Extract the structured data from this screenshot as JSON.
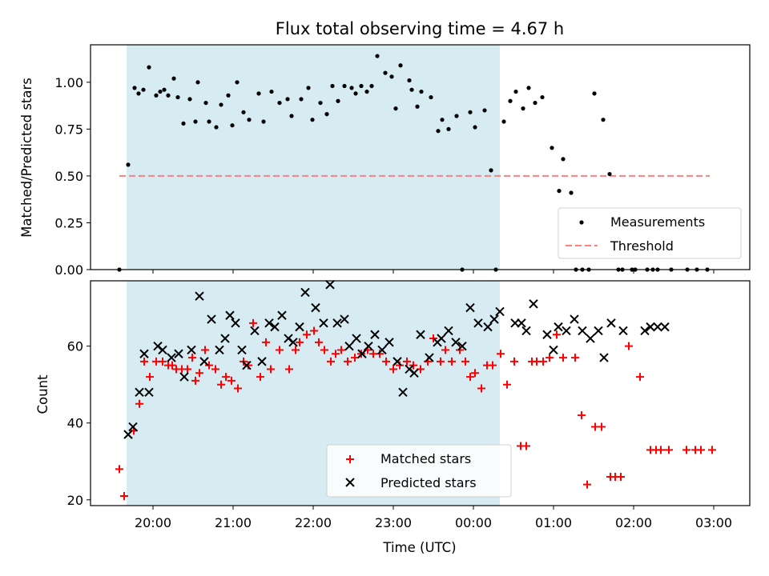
{
  "title": "Flux total observing time = 4.67 h",
  "xlabel": "Time (UTC)",
  "xticks": [
    "20:00",
    "21:00",
    "22:00",
    "23:00",
    "00:00",
    "01:00",
    "02:00",
    "03:00"
  ],
  "colors": {
    "shade": "#add8e6",
    "measurement": "#000000",
    "threshold": "#ff7f7f",
    "matched": "#ff0000",
    "predicted": "#000000"
  },
  "chart_data": [
    {
      "type": "scatter",
      "ylabel": "Matched/Predicted stars",
      "ylim": [
        0,
        1.2
      ],
      "yticks": [
        "0.00",
        "0.25",
        "0.50",
        "0.75",
        "1.00"
      ],
      "xlim_hours": [
        19.22,
        27.45
      ],
      "shaded_span_hours": [
        19.67,
        24.33
      ],
      "threshold": {
        "value": 0.5,
        "x_hours": [
          19.58,
          26.95
        ],
        "label": "Threshold"
      },
      "legend": [
        "Measurements",
        "Threshold"
      ],
      "legend_position": "lower right",
      "series": [
        {
          "name": "Measurements",
          "x_hours": [
            19.58,
            19.69,
            19.77,
            19.82,
            19.88,
            19.95,
            20.04,
            20.09,
            20.14,
            20.19,
            20.26,
            20.31,
            20.38,
            20.46,
            20.53,
            20.56,
            20.66,
            20.7,
            20.79,
            20.85,
            20.94,
            20.99,
            21.05,
            21.13,
            21.2,
            21.32,
            21.38,
            21.48,
            21.58,
            21.68,
            21.73,
            21.85,
            21.94,
            21.99,
            22.09,
            22.17,
            22.24,
            22.31,
            22.39,
            22.48,
            22.53,
            22.6,
            22.67,
            22.73,
            22.8,
            22.9,
            22.98,
            23.03,
            23.09,
            23.2,
            23.23,
            23.3,
            23.35,
            23.47,
            23.56,
            23.61,
            23.69,
            23.79,
            23.86,
            23.96,
            24.02,
            24.14,
            24.22,
            24.28,
            24.38,
            24.46,
            24.53,
            24.62,
            24.69,
            24.77,
            24.86,
            24.98,
            25.07,
            25.12,
            25.22,
            25.28,
            25.36,
            25.44,
            25.51,
            25.62,
            25.7,
            25.81,
            25.86,
            25.98,
            26.02,
            26.17,
            26.24,
            26.3,
            26.47,
            26.67,
            26.79,
            26.92
          ],
          "y": [
            0.0,
            0.56,
            0.97,
            0.94,
            0.96,
            1.08,
            0.93,
            0.95,
            0.96,
            0.93,
            1.02,
            0.92,
            0.78,
            0.91,
            0.79,
            1.0,
            0.89,
            0.79,
            0.76,
            0.88,
            0.93,
            0.77,
            1.0,
            0.84,
            0.8,
            0.94,
            0.79,
            0.95,
            0.89,
            0.91,
            0.82,
            0.91,
            0.97,
            0.8,
            0.89,
            0.83,
            0.98,
            0.9,
            0.98,
            0.97,
            0.94,
            0.98,
            0.95,
            0.98,
            1.14,
            1.05,
            1.03,
            0.86,
            1.09,
            1.01,
            0.96,
            0.87,
            0.95,
            0.92,
            0.74,
            0.8,
            0.75,
            0.82,
            0.0,
            0.84,
            0.76,
            0.85,
            0.53,
            0.0,
            0.79,
            0.9,
            0.95,
            0.86,
            0.97,
            0.89,
            0.92,
            0.65,
            0.42,
            0.59,
            0.41,
            0.0,
            0.0,
            0.0,
            0.94,
            0.8,
            0.51,
            0.0,
            0.0,
            0.0,
            0.0,
            0.0,
            0.0,
            0.0,
            0.0,
            0.0,
            0.0,
            0.0
          ]
        }
      ]
    },
    {
      "type": "scatter",
      "ylabel": "Count",
      "ylim": [
        18.5,
        77
      ],
      "yticks": [
        "20",
        "40",
        "60"
      ],
      "xlim_hours": [
        19.22,
        27.45
      ],
      "shaded_span_hours": [
        19.67,
        24.33
      ],
      "legend": [
        "Matched stars",
        "Predicted stars"
      ],
      "legend_position": "lower center",
      "series": [
        {
          "name": "Matched stars",
          "x_hours": [
            19.58,
            19.64,
            19.76,
            19.83,
            19.89,
            19.96,
            20.04,
            20.12,
            20.19,
            20.24,
            20.29,
            20.36,
            20.43,
            20.49,
            20.53,
            20.58,
            20.65,
            20.7,
            20.78,
            20.85,
            20.91,
            20.98,
            21.06,
            21.13,
            21.19,
            21.25,
            21.34,
            21.41,
            21.47,
            21.58,
            21.7,
            21.78,
            21.83,
            21.92,
            22.01,
            22.07,
            22.14,
            22.22,
            22.28,
            22.35,
            22.43,
            22.52,
            22.6,
            22.68,
            22.75,
            22.83,
            22.91,
            23.0,
            23.08,
            23.17,
            23.25,
            23.34,
            23.43,
            23.5,
            23.59,
            23.65,
            23.73,
            23.83,
            23.9,
            23.96,
            24.02,
            24.1,
            24.17,
            24.24,
            24.34,
            24.42,
            24.51,
            24.59,
            24.66,
            24.73,
            24.79,
            24.87,
            24.95,
            25.04,
            25.12,
            25.27,
            25.35,
            25.42,
            25.52,
            25.6,
            25.71,
            25.77,
            25.84,
            25.94,
            26.08,
            26.21,
            26.28,
            26.34,
            26.44,
            26.66,
            26.77,
            26.84,
            26.98
          ],
          "y": [
            28,
            21,
            38,
            45,
            56,
            52,
            56,
            56,
            55,
            55,
            54,
            54,
            54,
            57,
            51,
            53,
            59,
            55,
            54,
            50,
            52,
            51,
            49,
            56,
            55,
            66,
            52,
            61,
            54,
            59,
            54,
            59,
            61,
            63,
            64,
            61,
            59,
            56,
            58,
            59,
            56,
            57,
            58,
            59,
            58,
            58,
            56,
            54,
            55,
            56,
            55,
            54,
            56,
            62,
            56,
            59,
            56,
            59,
            56,
            52,
            53,
            49,
            55,
            55,
            58,
            50,
            56,
            34,
            34,
            56,
            56,
            56,
            57,
            63,
            57,
            57,
            42,
            24,
            39,
            39,
            26,
            26,
            26,
            60,
            52,
            33,
            33,
            33,
            33,
            33,
            33,
            33,
            33
          ]
        },
        {
          "name": "Predicted stars",
          "x_hours": [
            19.69,
            19.75,
            19.83,
            19.89,
            19.95,
            20.06,
            20.12,
            20.23,
            20.32,
            20.39,
            20.48,
            20.58,
            20.64,
            20.73,
            20.83,
            20.9,
            20.96,
            21.03,
            21.11,
            21.17,
            21.27,
            21.36,
            21.45,
            21.52,
            21.61,
            21.69,
            21.75,
            21.83,
            21.9,
            22.03,
            22.13,
            22.21,
            22.3,
            22.39,
            22.45,
            22.54,
            22.61,
            22.69,
            22.77,
            22.86,
            22.95,
            23.05,
            23.12,
            23.2,
            23.26,
            23.34,
            23.45,
            23.55,
            23.6,
            23.69,
            23.78,
            23.86,
            23.96,
            24.06,
            24.18,
            24.26,
            24.33,
            24.52,
            24.6,
            24.66,
            24.75,
            24.92,
            25.0,
            25.06,
            25.16,
            25.26,
            25.36,
            25.46,
            25.56,
            25.63,
            25.72,
            25.87,
            26.14,
            26.21,
            26.3,
            26.39
          ],
          "y": [
            37,
            39,
            48,
            58,
            48,
            60,
            59,
            57,
            58,
            52,
            59,
            73,
            56,
            67,
            59,
            62,
            68,
            66,
            59,
            55,
            64,
            56,
            66,
            65,
            68,
            62,
            61,
            65,
            74,
            70,
            66,
            76,
            66,
            67,
            60,
            62,
            58,
            60,
            63,
            59,
            61,
            56,
            48,
            54,
            53,
            63,
            57,
            61,
            62,
            64,
            61,
            60,
            70,
            66,
            65,
            67,
            69,
            66,
            66,
            64,
            71,
            63,
            59,
            65,
            64,
            67,
            64,
            62,
            64,
            57,
            66,
            64,
            64,
            65,
            65,
            65
          ]
        }
      ]
    }
  ]
}
